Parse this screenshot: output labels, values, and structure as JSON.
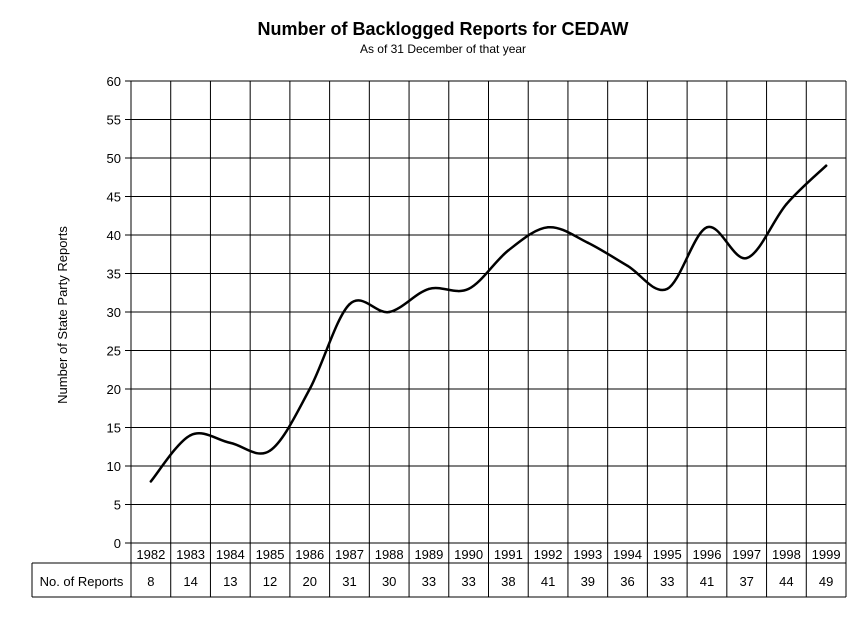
{
  "chart_data": {
    "type": "line",
    "title": "Number of  Backlogged Reports for CEDAW",
    "subtitle": "As of 31 December of that year",
    "ylabel": "Number of State Party Reports",
    "ylim": [
      0,
      60
    ],
    "yticks": [
      0,
      5,
      10,
      15,
      20,
      25,
      30,
      35,
      40,
      45,
      50,
      55,
      60
    ],
    "grid": true,
    "legend": "none",
    "categories": [
      "1982",
      "1983",
      "1984",
      "1985",
      "1986",
      "1987",
      "1988",
      "1989",
      "1990",
      "1991",
      "1992",
      "1993",
      "1994",
      "1995",
      "1996",
      "1997",
      "1998",
      "1999"
    ],
    "series": [
      {
        "values": [
          8,
          14,
          13,
          12,
          20,
          31,
          30,
          33,
          33,
          38,
          41,
          39,
          36,
          33,
          41,
          37,
          44,
          49
        ]
      }
    ],
    "table": {
      "row_label": "No. of Reports",
      "values": [
        "8",
        "14",
        "13",
        "12",
        "20",
        "31",
        "30",
        "33",
        "33",
        "38",
        "41",
        "39",
        "36",
        "33",
        "41",
        "37",
        "44",
        "49"
      ]
    }
  },
  "colors": {
    "line": "#000000",
    "grid": "#000000",
    "background": "#ffffff"
  }
}
